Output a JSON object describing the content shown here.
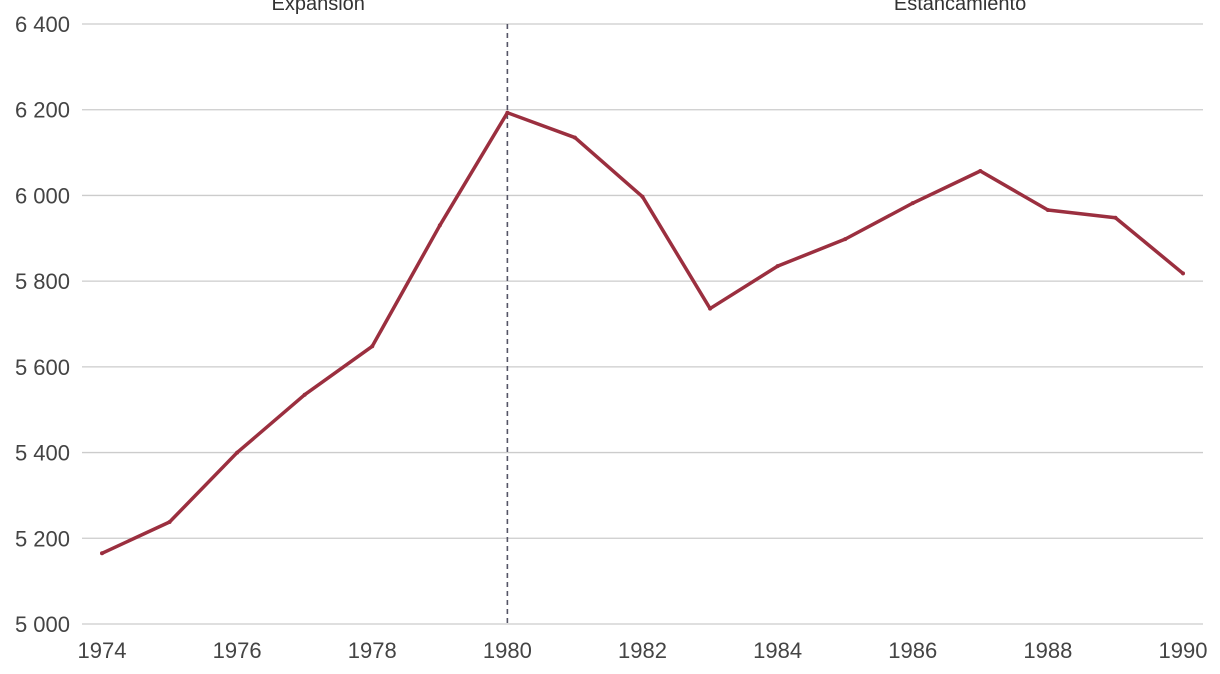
{
  "chart_data": {
    "type": "line",
    "title": "",
    "xlabel": "",
    "ylabel": "",
    "x": [
      1974,
      1975,
      1976,
      1977,
      1978,
      1979,
      1980,
      1981,
      1982,
      1983,
      1984,
      1985,
      1986,
      1987,
      1988,
      1989,
      1990
    ],
    "series": [
      {
        "values": [
          5165,
          5238,
          5400,
          5535,
          5648,
          5930,
          6193,
          6135,
          5997,
          5736,
          5835,
          5898,
          5982,
          6057,
          5966,
          5948,
          5818
        ],
        "color": "#9b2f3f"
      }
    ],
    "xlim": [
      1974,
      1990
    ],
    "ylim": [
      5000,
      6400
    ],
    "x_ticks": [
      1974,
      1976,
      1978,
      1980,
      1982,
      1984,
      1986,
      1988,
      1990
    ],
    "x_tick_labels": [
      "1974",
      "1976",
      "1978",
      "1980",
      "1982",
      "1984",
      "1986",
      "1988",
      "1990"
    ],
    "y_ticks": [
      5000,
      5200,
      5400,
      5600,
      5800,
      6000,
      6200,
      6400
    ],
    "y_tick_labels": [
      "5 000",
      "5 200",
      "5 400",
      "5 600",
      "5 800",
      "6 000",
      "6 200",
      "6 400"
    ],
    "grid": "horizontal",
    "legend": "none",
    "reference_line": {
      "x": 1980,
      "style": "dashed",
      "color": "#555566"
    },
    "annotations": [
      {
        "text": "Expansión",
        "x": 1977.2
      },
      {
        "text": "Estancamiento",
        "x": 1986.7
      }
    ],
    "colors": {
      "line": "#9b2f3f",
      "grid": "#cccccc",
      "tick_text": "#444444"
    }
  }
}
